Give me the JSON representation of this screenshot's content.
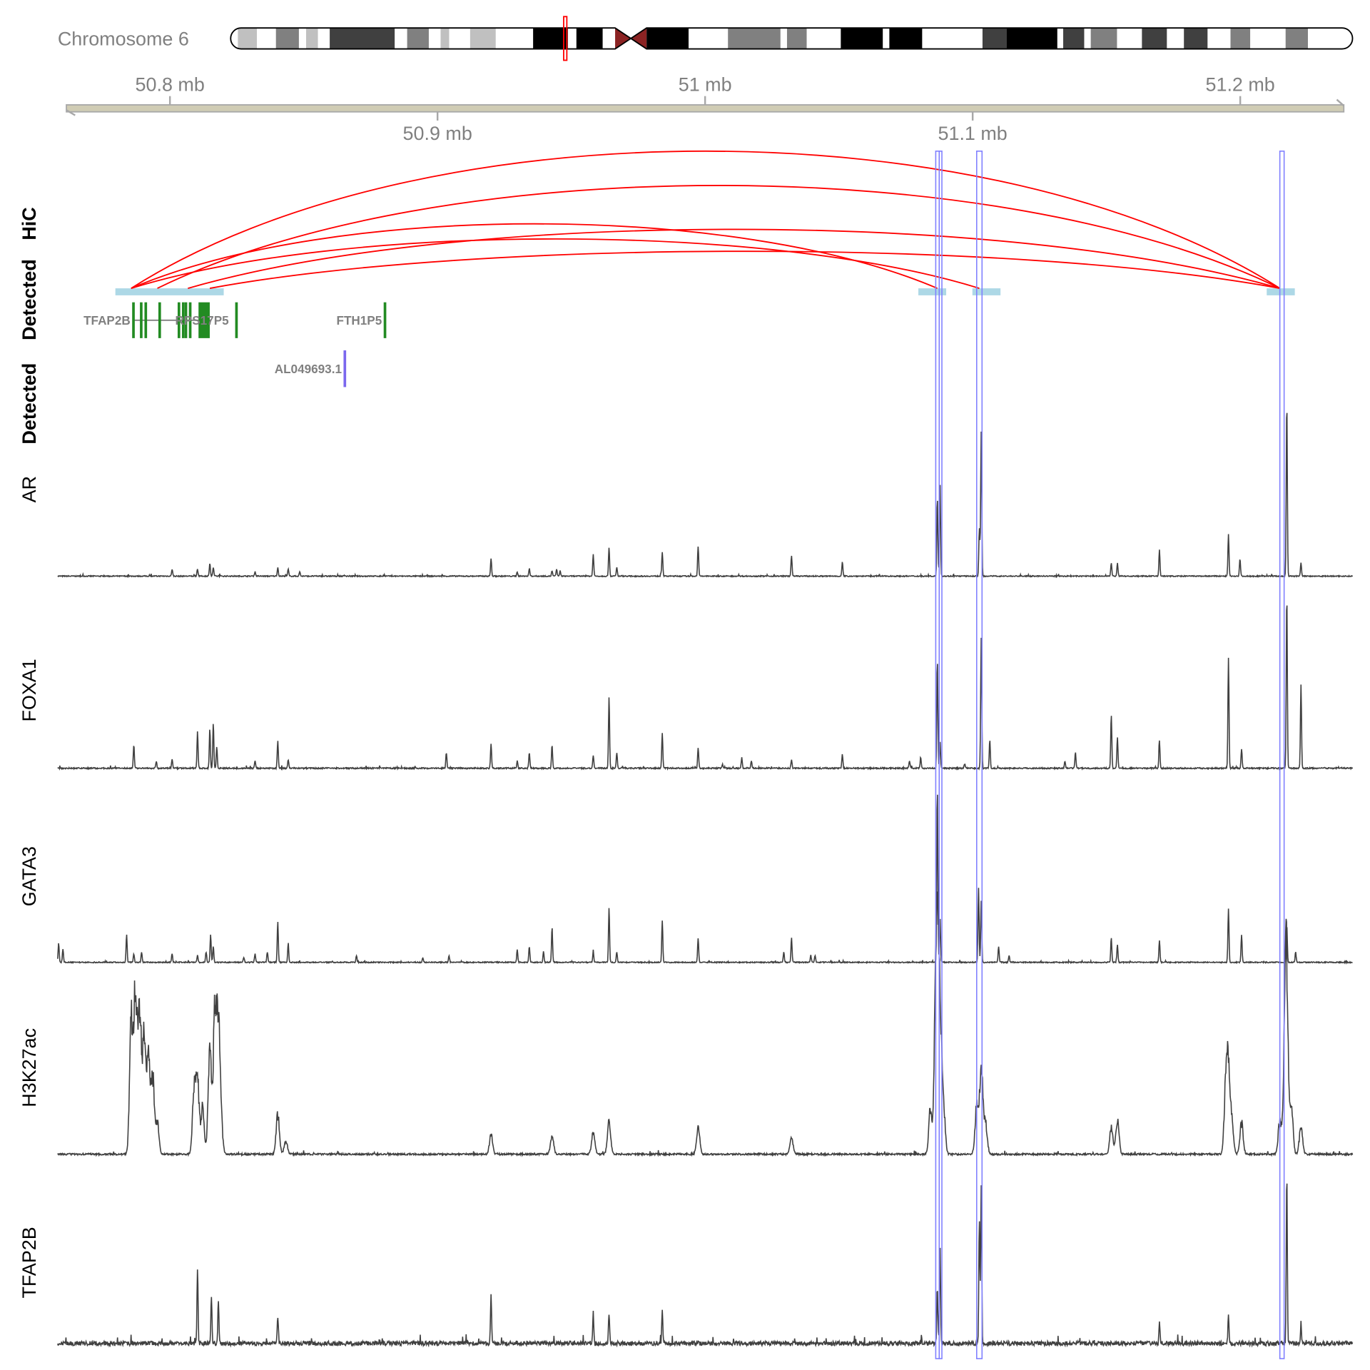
{
  "chart_data": {
    "type": "genome-tracks",
    "chromosome": {
      "label": "Chromosome 6",
      "length_mb": 171,
      "region_marker_color": "#ff0000",
      "bands": [
        [
          0,
          1.1,
          "w"
        ],
        [
          1.1,
          4.0,
          "l"
        ],
        [
          4.0,
          6.9,
          "w"
        ],
        [
          6.9,
          10.4,
          "g"
        ],
        [
          10.4,
          11.5,
          "w"
        ],
        [
          11.5,
          13.3,
          "l"
        ],
        [
          13.3,
          15.1,
          "w"
        ],
        [
          15.1,
          25.0,
          "d"
        ],
        [
          25.0,
          26.9,
          "w"
        ],
        [
          26.9,
          30.2,
          "g"
        ],
        [
          30.2,
          32.0,
          "w"
        ],
        [
          32.0,
          33.3,
          "l"
        ],
        [
          33.3,
          36.5,
          "w"
        ],
        [
          36.5,
          40.4,
          "l"
        ],
        [
          40.4,
          46.1,
          "w"
        ],
        [
          46.1,
          51.4,
          "b"
        ],
        [
          51.4,
          52.7,
          "w"
        ],
        [
          52.7,
          56.7,
          "b"
        ],
        [
          56.7,
          58.6,
          "w"
        ],
        [
          58.6,
          61.0,
          "cl"
        ],
        [
          61.0,
          63.4,
          "cr"
        ],
        [
          63.4,
          69.8,
          "b"
        ],
        [
          69.8,
          75.8,
          "w"
        ],
        [
          75.8,
          83.8,
          "g"
        ],
        [
          83.8,
          84.8,
          "w"
        ],
        [
          84.8,
          87.8,
          "g"
        ],
        [
          87.8,
          93.0,
          "w"
        ],
        [
          93.0,
          99.4,
          "b"
        ],
        [
          99.4,
          100.4,
          "w"
        ],
        [
          100.4,
          105.4,
          "b"
        ],
        [
          105.4,
          114.6,
          "w"
        ],
        [
          114.6,
          118.3,
          "d"
        ],
        [
          118.3,
          126.0,
          "b"
        ],
        [
          126.0,
          126.9,
          "w"
        ],
        [
          126.9,
          130.1,
          "d"
        ],
        [
          130.1,
          131.1,
          "w"
        ],
        [
          131.1,
          135.1,
          "g"
        ],
        [
          135.1,
          138.9,
          "w"
        ],
        [
          138.9,
          142.7,
          "d"
        ],
        [
          142.7,
          145.3,
          "w"
        ],
        [
          145.3,
          148.9,
          "d"
        ],
        [
          148.9,
          152.4,
          "w"
        ],
        [
          152.4,
          155.4,
          "g"
        ],
        [
          155.4,
          160.8,
          "w"
        ],
        [
          160.8,
          164.2,
          "g"
        ],
        [
          164.2,
          171.0,
          "w"
        ]
      ],
      "stain_colors": {
        "w": "#ffffff",
        "l": "#c0c0c0",
        "g": "#808080",
        "d": "#404040",
        "b": "#000000",
        "cl": "#8b2323",
        "cr": "#8b2323"
      }
    },
    "axis": {
      "xlim_mb": [
        50.7613,
        51.2387
      ],
      "ticks": [
        {
          "value": 50.8,
          "label": "50.8 mb",
          "side": "above"
        },
        {
          "value": 50.9,
          "label": "50.9 mb",
          "side": "below"
        },
        {
          "value": 51.0,
          "label": "51 mb",
          "side": "above"
        },
        {
          "value": 51.1,
          "label": "51.1 mb",
          "side": "below"
        },
        {
          "value": 51.2,
          "label": "51.2 mb",
          "side": "above"
        }
      ]
    },
    "hic": {
      "label": "HiC",
      "color": "#ff0000",
      "anchor_color": "#add8e6",
      "anchors": [
        [
          50.7796,
          50.8201
        ],
        [
          51.0797,
          51.0901
        ],
        [
          51.0999,
          51.1104
        ],
        [
          51.2099,
          51.2204
        ]
      ],
      "interactions": [
        {
          "from": 50.7855,
          "to": 51.2148,
          "score": 1.0
        },
        {
          "from": 50.7953,
          "to": 51.2148,
          "score": 0.75
        },
        {
          "from": 50.7855,
          "to": 51.0868,
          "score": 0.47
        },
        {
          "from": 50.7855,
          "to": 51.1025,
          "score": 0.36
        },
        {
          "from": 50.8067,
          "to": 51.2148,
          "score": 0.43
        },
        {
          "from": 50.8149,
          "to": 51.2148,
          "score": 0.27
        }
      ]
    },
    "detected": {
      "labels": [
        "Detected",
        "Detected"
      ],
      "gene_color": "#228b22",
      "lnc_color": "#7b68ee",
      "genes": [
        {
          "name": "TFAP2B",
          "exons": [
            [
              50.7862,
              50.7868
            ],
            [
              50.7891,
              50.7897
            ],
            [
              50.7908,
              50.7914
            ],
            [
              50.796,
              50.7966
            ],
            [
              50.8032,
              50.8038
            ],
            [
              50.8048,
              50.8054
            ],
            [
              50.8058,
              50.8064
            ],
            [
              50.8074,
              50.808
            ],
            [
              50.811,
              50.8152
            ]
          ],
          "span": [
            50.7862,
            50.8152
          ]
        },
        {
          "name": "RPS17P5",
          "exons": [
            [
              50.8247,
              50.8253
            ]
          ],
          "span": [
            50.8247,
            50.8253
          ]
        },
        {
          "name": "FTH1P5",
          "exons": [
            [
              50.8802,
              50.8808
            ]
          ],
          "span": [
            50.8802,
            50.8808
          ]
        },
        {
          "name": "AL049693.1",
          "exons": [
            [
              50.8652,
              50.8658
            ]
          ],
          "span": [
            50.8652,
            50.8658
          ],
          "type": "lnc"
        }
      ]
    },
    "highlights": {
      "color": "#8080ff",
      "regions": [
        [
          51.0862,
          51.0875
        ],
        [
          51.0875,
          51.0885
        ],
        [
          51.1015,
          51.1035
        ],
        [
          51.2148,
          51.2164
        ]
      ]
    },
    "signal_color": "#404040",
    "signal_max": 200,
    "tracks": [
      {
        "label": "AR",
        "noise": 1.2,
        "width_mb": 0.0004,
        "peaks": [
          [
            50.8008,
            8
          ],
          [
            50.8103,
            8
          ],
          [
            50.8149,
            15
          ],
          [
            50.8162,
            10
          ],
          [
            50.8318,
            5
          ],
          [
            50.8403,
            10
          ],
          [
            50.8442,
            8
          ],
          [
            50.8485,
            5
          ],
          [
            50.92,
            20
          ],
          [
            50.9298,
            5
          ],
          [
            50.9343,
            8
          ],
          [
            50.9428,
            6
          ],
          [
            50.9445,
            8
          ],
          [
            50.9458,
            6
          ],
          [
            50.9582,
            25
          ],
          [
            50.9641,
            33
          ],
          [
            50.967,
            10
          ],
          [
            50.984,
            28
          ],
          [
            50.9974,
            34
          ],
          [
            51.0323,
            24
          ],
          [
            51.0513,
            16
          ],
          [
            51.0868,
            90
          ],
          [
            51.0878,
            105
          ],
          [
            51.1025,
            55
          ],
          [
            51.1032,
            165
          ],
          [
            51.1518,
            15
          ],
          [
            51.1541,
            15
          ],
          [
            51.1698,
            30
          ],
          [
            51.1956,
            48
          ],
          [
            51.1999,
            20
          ],
          [
            51.2174,
            200
          ],
          [
            51.2227,
            15
          ]
        ]
      },
      {
        "label": "FOXA1",
        "noise": 1.5,
        "width_mb": 0.0004,
        "peaks": [
          [
            50.7865,
            27
          ],
          [
            50.7949,
            8
          ],
          [
            50.8008,
            10
          ],
          [
            50.8103,
            42
          ],
          [
            50.8149,
            45
          ],
          [
            50.8162,
            52
          ],
          [
            50.8175,
            25
          ],
          [
            50.8318,
            8
          ],
          [
            50.8403,
            32
          ],
          [
            50.8442,
            10
          ],
          [
            50.9033,
            18
          ],
          [
            50.92,
            28
          ],
          [
            50.9298,
            8
          ],
          [
            50.9343,
            18
          ],
          [
            50.9428,
            27
          ],
          [
            50.9582,
            15
          ],
          [
            50.9641,
            82
          ],
          [
            50.967,
            18
          ],
          [
            50.984,
            40
          ],
          [
            50.9974,
            24
          ],
          [
            51.0065,
            5
          ],
          [
            51.0137,
            12
          ],
          [
            51.0173,
            8
          ],
          [
            51.0323,
            10
          ],
          [
            51.0513,
            16
          ],
          [
            51.0764,
            8
          ],
          [
            51.0806,
            12
          ],
          [
            51.0868,
            125
          ],
          [
            51.0878,
            30
          ],
          [
            51.097,
            5
          ],
          [
            51.1032,
            150
          ],
          [
            51.1064,
            32
          ],
          [
            51.1345,
            8
          ],
          [
            51.1384,
            18
          ],
          [
            51.1518,
            62
          ],
          [
            51.1541,
            35
          ],
          [
            51.1698,
            32
          ],
          [
            51.1956,
            127
          ],
          [
            51.2005,
            22
          ],
          [
            51.2174,
            200
          ],
          [
            51.2227,
            95
          ]
        ]
      },
      {
        "label": "GATA3",
        "noise": 1.2,
        "width_mb": 0.0004,
        "peaks": [
          [
            50.7584,
            22
          ],
          [
            50.76,
            15
          ],
          [
            50.7838,
            32
          ],
          [
            50.7865,
            10
          ],
          [
            50.7894,
            12
          ],
          [
            50.8008,
            10
          ],
          [
            50.8103,
            8
          ],
          [
            50.8135,
            12
          ],
          [
            50.8152,
            32
          ],
          [
            50.8162,
            18
          ],
          [
            50.8276,
            6
          ],
          [
            50.8318,
            10
          ],
          [
            50.8364,
            12
          ],
          [
            50.8403,
            47
          ],
          [
            50.8442,
            22
          ],
          [
            50.8697,
            8
          ],
          [
            50.8945,
            5
          ],
          [
            50.9043,
            8
          ],
          [
            50.9298,
            15
          ],
          [
            50.9343,
            18
          ],
          [
            50.9396,
            12
          ],
          [
            50.9428,
            40
          ],
          [
            50.9582,
            12
          ],
          [
            50.9641,
            62
          ],
          [
            50.967,
            12
          ],
          [
            50.984,
            48
          ],
          [
            50.9974,
            28
          ],
          [
            51.0294,
            12
          ],
          [
            51.0323,
            28
          ],
          [
            51.0395,
            8
          ],
          [
            51.0411,
            8
          ],
          [
            51.0868,
            200
          ],
          [
            51.0878,
            50
          ],
          [
            51.1022,
            85
          ],
          [
            51.1032,
            70
          ],
          [
            51.1097,
            18
          ],
          [
            51.1136,
            8
          ],
          [
            51.1518,
            28
          ],
          [
            51.1541,
            20
          ],
          [
            51.1698,
            25
          ],
          [
            51.1956,
            62
          ],
          [
            51.2005,
            32
          ],
          [
            51.2174,
            42
          ],
          [
            51.2207,
            12
          ]
        ]
      },
      {
        "label": "H3K27ac",
        "noise": 2.0,
        "width_mb": 0.0012,
        "peaks": [
          [
            50.7855,
            150
          ],
          [
            50.7871,
            190
          ],
          [
            50.7887,
            165
          ],
          [
            50.7904,
            145
          ],
          [
            50.792,
            105
          ],
          [
            50.7936,
            85
          ],
          [
            50.7953,
            35
          ],
          [
            50.809,
            70
          ],
          [
            50.8103,
            85
          ],
          [
            50.8122,
            55
          ],
          [
            50.8149,
            120
          ],
          [
            50.8168,
            165
          ],
          [
            50.8181,
            140
          ],
          [
            50.8191,
            35
          ],
          [
            50.8403,
            45
          ],
          [
            50.8433,
            15
          ],
          [
            50.92,
            22
          ],
          [
            50.9428,
            20
          ],
          [
            50.9582,
            25
          ],
          [
            50.9641,
            35
          ],
          [
            50.9974,
            30
          ],
          [
            51.0323,
            18
          ],
          [
            51.0842,
            50
          ],
          [
            51.0862,
            135
          ],
          [
            51.0868,
            170
          ],
          [
            51.0878,
            145
          ],
          [
            51.0891,
            55
          ],
          [
            51.1015,
            55
          ],
          [
            51.1032,
            100
          ],
          [
            51.1048,
            35
          ],
          [
            51.1518,
            30
          ],
          [
            51.1541,
            40
          ],
          [
            51.1946,
            75
          ],
          [
            51.1956,
            90
          ],
          [
            51.1969,
            35
          ],
          [
            51.2005,
            35
          ],
          [
            51.2148,
            40
          ],
          [
            51.2168,
            135
          ],
          [
            51.2174,
            140
          ],
          [
            51.2191,
            55
          ],
          [
            51.2227,
            30
          ]
        ]
      },
      {
        "label": "TFAP2B",
        "noise": 5.0,
        "width_mb": 0.0004,
        "peaks": [
          [
            50.8103,
            85
          ],
          [
            50.8155,
            55
          ],
          [
            50.8181,
            50
          ],
          [
            50.8403,
            30
          ],
          [
            50.92,
            55
          ],
          [
            50.9582,
            35
          ],
          [
            50.9641,
            35
          ],
          [
            50.984,
            40
          ],
          [
            51.0868,
            65
          ],
          [
            51.0878,
            110
          ],
          [
            51.1025,
            140
          ],
          [
            51.1032,
            180
          ],
          [
            51.1698,
            25
          ],
          [
            51.1956,
            35
          ],
          [
            51.2174,
            195
          ],
          [
            51.2227,
            20
          ]
        ]
      }
    ]
  }
}
